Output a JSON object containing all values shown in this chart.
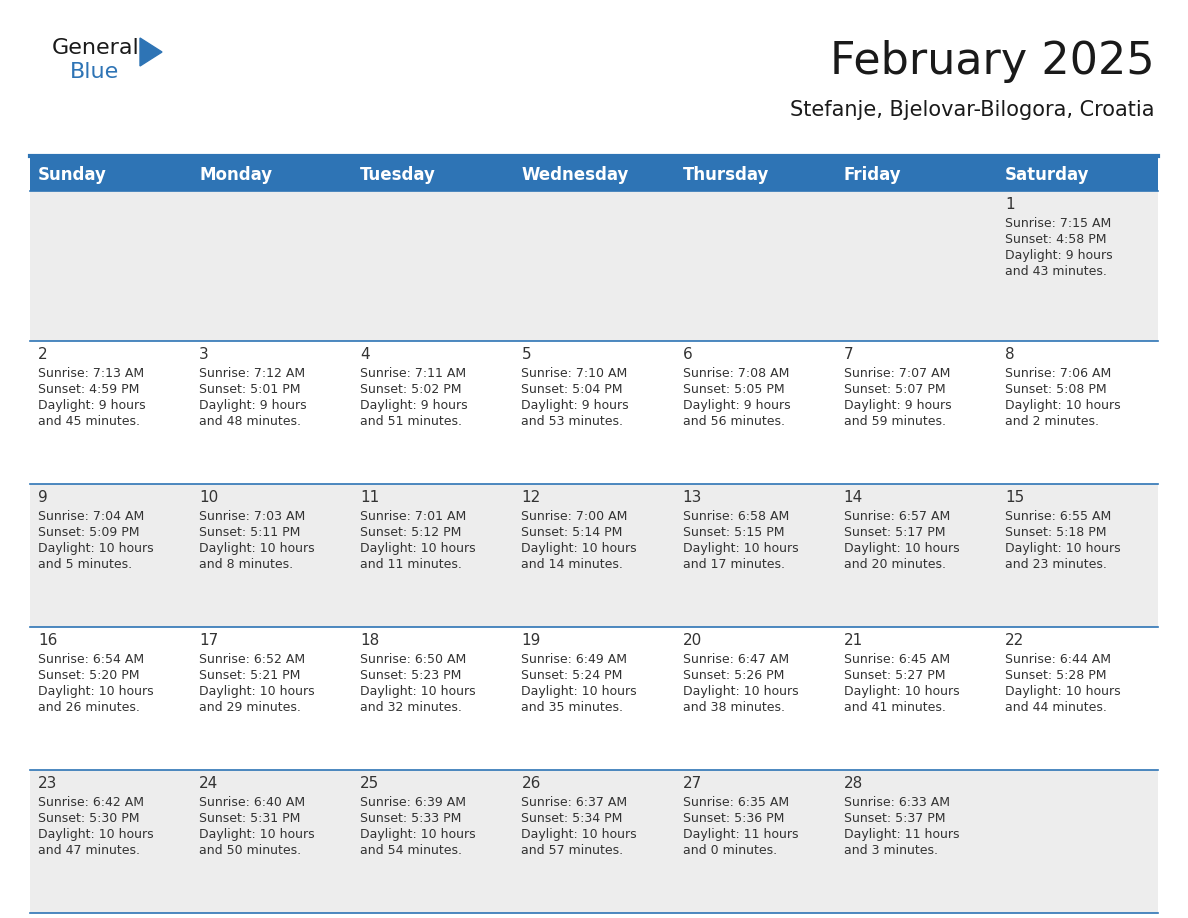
{
  "title": "February 2025",
  "subtitle": "Stefanje, Bjelovar-Bilogora, Croatia",
  "header_color": "#2E74B5",
  "header_text_color": "#FFFFFF",
  "background_color": "#FFFFFF",
  "alt_row_color": "#EDEDED",
  "border_color": "#2E74B5",
  "day_names": [
    "Sunday",
    "Monday",
    "Tuesday",
    "Wednesday",
    "Thursday",
    "Friday",
    "Saturday"
  ],
  "title_fontsize": 32,
  "subtitle_fontsize": 15,
  "header_fontsize": 12,
  "day_num_fontsize": 11,
  "cell_fontsize": 9,
  "days": [
    {
      "day": 1,
      "col": 6,
      "row": 0,
      "sunrise": "7:15 AM",
      "sunset": "4:58 PM",
      "daylight": "9 hours and 43 minutes"
    },
    {
      "day": 2,
      "col": 0,
      "row": 1,
      "sunrise": "7:13 AM",
      "sunset": "4:59 PM",
      "daylight": "9 hours and 45 minutes"
    },
    {
      "day": 3,
      "col": 1,
      "row": 1,
      "sunrise": "7:12 AM",
      "sunset": "5:01 PM",
      "daylight": "9 hours and 48 minutes"
    },
    {
      "day": 4,
      "col": 2,
      "row": 1,
      "sunrise": "7:11 AM",
      "sunset": "5:02 PM",
      "daylight": "9 hours and 51 minutes"
    },
    {
      "day": 5,
      "col": 3,
      "row": 1,
      "sunrise": "7:10 AM",
      "sunset": "5:04 PM",
      "daylight": "9 hours and 53 minutes"
    },
    {
      "day": 6,
      "col": 4,
      "row": 1,
      "sunrise": "7:08 AM",
      "sunset": "5:05 PM",
      "daylight": "9 hours and 56 minutes"
    },
    {
      "day": 7,
      "col": 5,
      "row": 1,
      "sunrise": "7:07 AM",
      "sunset": "5:07 PM",
      "daylight": "9 hours and 59 minutes"
    },
    {
      "day": 8,
      "col": 6,
      "row": 1,
      "sunrise": "7:06 AM",
      "sunset": "5:08 PM",
      "daylight": "10 hours and 2 minutes"
    },
    {
      "day": 9,
      "col": 0,
      "row": 2,
      "sunrise": "7:04 AM",
      "sunset": "5:09 PM",
      "daylight": "10 hours and 5 minutes"
    },
    {
      "day": 10,
      "col": 1,
      "row": 2,
      "sunrise": "7:03 AM",
      "sunset": "5:11 PM",
      "daylight": "10 hours and 8 minutes"
    },
    {
      "day": 11,
      "col": 2,
      "row": 2,
      "sunrise": "7:01 AM",
      "sunset": "5:12 PM",
      "daylight": "10 hours and 11 minutes"
    },
    {
      "day": 12,
      "col": 3,
      "row": 2,
      "sunrise": "7:00 AM",
      "sunset": "5:14 PM",
      "daylight": "10 hours and 14 minutes"
    },
    {
      "day": 13,
      "col": 4,
      "row": 2,
      "sunrise": "6:58 AM",
      "sunset": "5:15 PM",
      "daylight": "10 hours and 17 minutes"
    },
    {
      "day": 14,
      "col": 5,
      "row": 2,
      "sunrise": "6:57 AM",
      "sunset": "5:17 PM",
      "daylight": "10 hours and 20 minutes"
    },
    {
      "day": 15,
      "col": 6,
      "row": 2,
      "sunrise": "6:55 AM",
      "sunset": "5:18 PM",
      "daylight": "10 hours and 23 minutes"
    },
    {
      "day": 16,
      "col": 0,
      "row": 3,
      "sunrise": "6:54 AM",
      "sunset": "5:20 PM",
      "daylight": "10 hours and 26 minutes"
    },
    {
      "day": 17,
      "col": 1,
      "row": 3,
      "sunrise": "6:52 AM",
      "sunset": "5:21 PM",
      "daylight": "10 hours and 29 minutes"
    },
    {
      "day": 18,
      "col": 2,
      "row": 3,
      "sunrise": "6:50 AM",
      "sunset": "5:23 PM",
      "daylight": "10 hours and 32 minutes"
    },
    {
      "day": 19,
      "col": 3,
      "row": 3,
      "sunrise": "6:49 AM",
      "sunset": "5:24 PM",
      "daylight": "10 hours and 35 minutes"
    },
    {
      "day": 20,
      "col": 4,
      "row": 3,
      "sunrise": "6:47 AM",
      "sunset": "5:26 PM",
      "daylight": "10 hours and 38 minutes"
    },
    {
      "day": 21,
      "col": 5,
      "row": 3,
      "sunrise": "6:45 AM",
      "sunset": "5:27 PM",
      "daylight": "10 hours and 41 minutes"
    },
    {
      "day": 22,
      "col": 6,
      "row": 3,
      "sunrise": "6:44 AM",
      "sunset": "5:28 PM",
      "daylight": "10 hours and 44 minutes"
    },
    {
      "day": 23,
      "col": 0,
      "row": 4,
      "sunrise": "6:42 AM",
      "sunset": "5:30 PM",
      "daylight": "10 hours and 47 minutes"
    },
    {
      "day": 24,
      "col": 1,
      "row": 4,
      "sunrise": "6:40 AM",
      "sunset": "5:31 PM",
      "daylight": "10 hours and 50 minutes"
    },
    {
      "day": 25,
      "col": 2,
      "row": 4,
      "sunrise": "6:39 AM",
      "sunset": "5:33 PM",
      "daylight": "10 hours and 54 minutes"
    },
    {
      "day": 26,
      "col": 3,
      "row": 4,
      "sunrise": "6:37 AM",
      "sunset": "5:34 PM",
      "daylight": "10 hours and 57 minutes"
    },
    {
      "day": 27,
      "col": 4,
      "row": 4,
      "sunrise": "6:35 AM",
      "sunset": "5:36 PM",
      "daylight": "11 hours and 0 minutes"
    },
    {
      "day": 28,
      "col": 5,
      "row": 4,
      "sunrise": "6:33 AM",
      "sunset": "5:37 PM",
      "daylight": "11 hours and 3 minutes"
    }
  ]
}
